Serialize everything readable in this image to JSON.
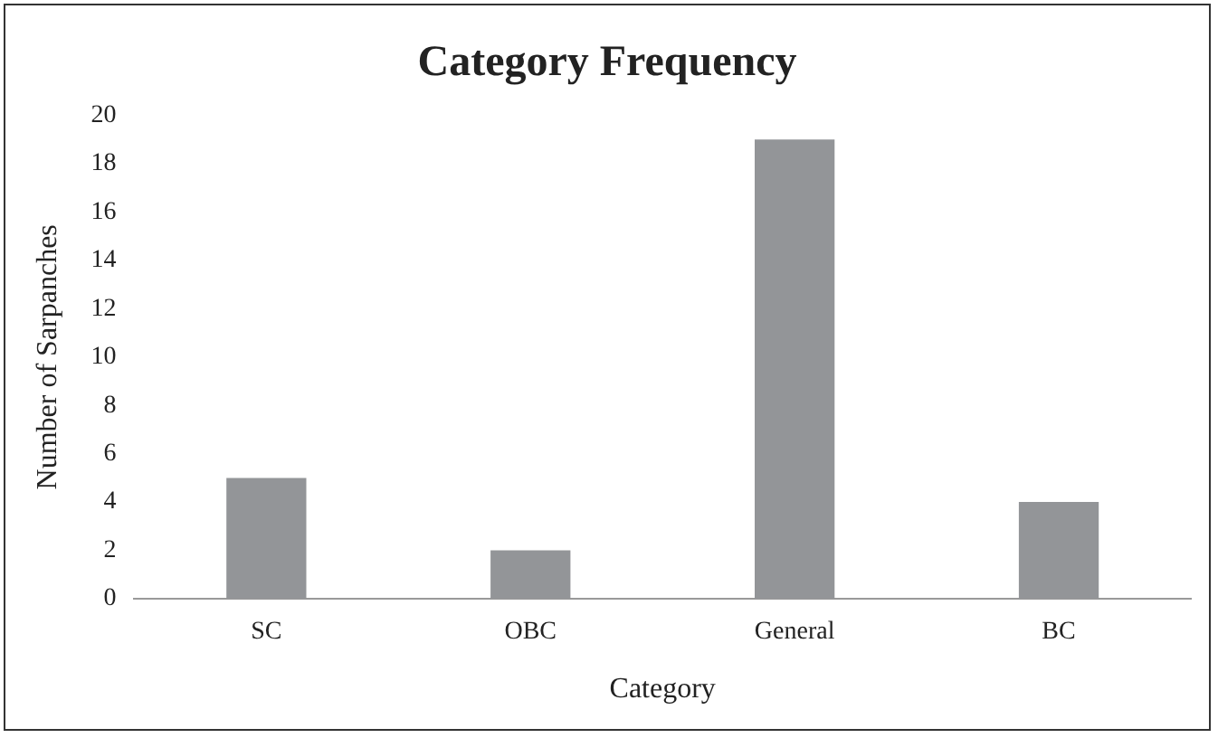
{
  "chart_data": {
    "type": "bar",
    "title": "Category Frequency",
    "xlabel": "Category",
    "ylabel": "Number of Sarpanches",
    "categories": [
      "SC",
      "OBC",
      "General",
      "BC"
    ],
    "values": [
      5,
      2,
      19,
      4
    ],
    "color": "#939598",
    "ylim": [
      0,
      20
    ],
    "yticks": [
      0,
      2,
      4,
      6,
      8,
      10,
      12,
      14,
      16,
      18,
      20
    ],
    "grid": false,
    "legend": false
  }
}
